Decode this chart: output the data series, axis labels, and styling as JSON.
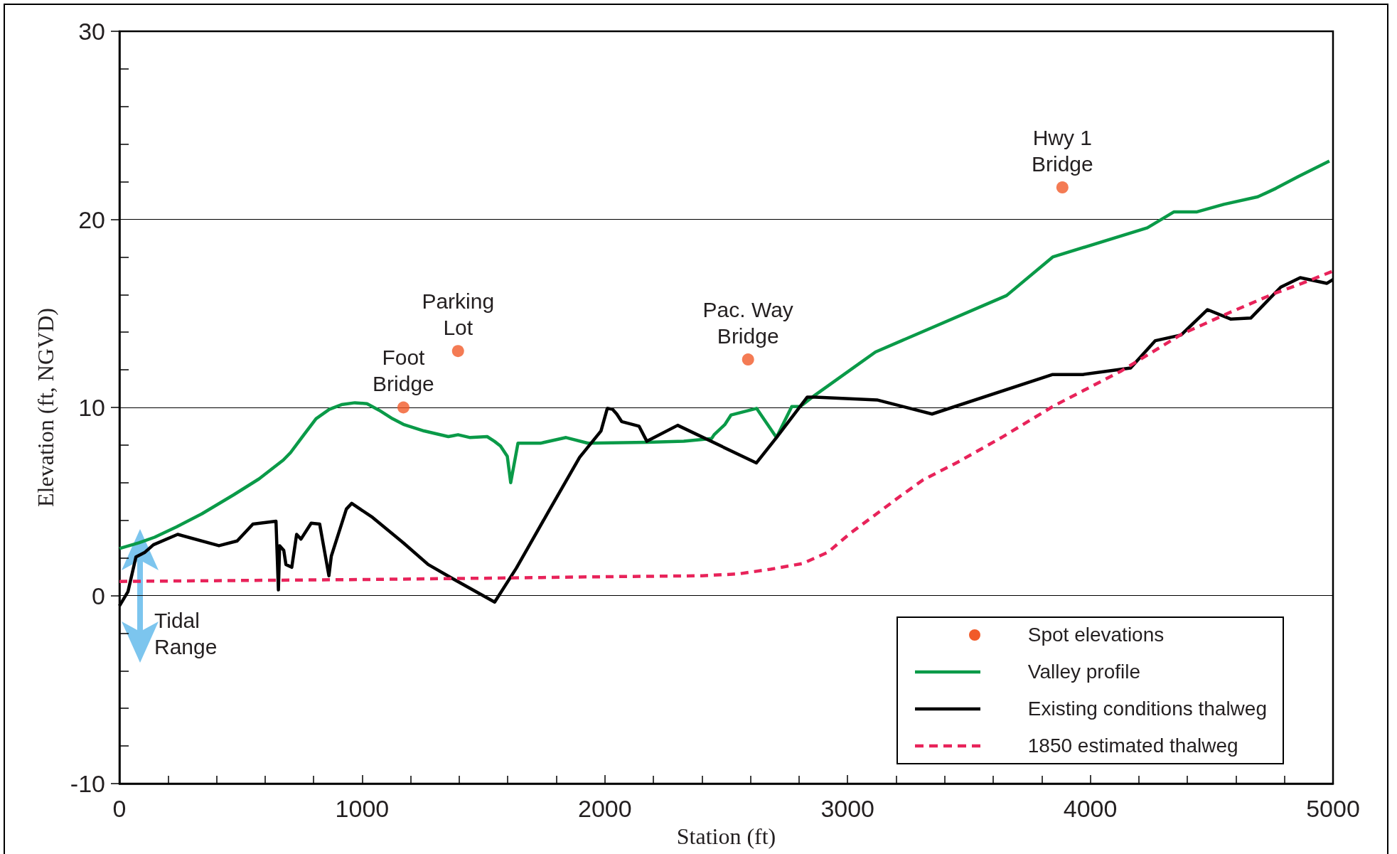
{
  "chart_data": {
    "type": "line",
    "xlabel": "Station (ft)",
    "ylabel": "Elevation (ft, NGVD)",
    "xlim": [
      0,
      5000
    ],
    "xticks": [
      0,
      {
        "value": 200,
        "label": null
      },
      {
        "value": 400,
        "label": null
      },
      {
        "value": 600,
        "label": null
      },
      {
        "value": 800,
        "label": null
      },
      1000,
      {
        "value": 1200,
        "label": null
      },
      {
        "value": 1400,
        "label": null
      },
      {
        "value": 1600,
        "label": null
      },
      {
        "value": 1800,
        "label": null
      },
      2000,
      {
        "value": 2200,
        "label": null
      },
      {
        "value": 2400,
        "label": null
      },
      {
        "value": 2600,
        "label": null
      },
      {
        "value": 2800,
        "label": null
      },
      3000,
      {
        "value": 3200,
        "label": null
      },
      {
        "value": 3400,
        "label": null
      },
      {
        "value": 3600,
        "label": null
      },
      {
        "value": 3800,
        "label": null
      },
      4000,
      {
        "value": 4200,
        "label": null
      },
      {
        "value": 4400,
        "label": null
      },
      {
        "value": 4600,
        "label": null
      },
      {
        "value": 4800,
        "label": null
      },
      5000
    ],
    "ylim": [
      -10,
      30
    ],
    "yticks": [
      -10,
      {
        "value": -8,
        "label": null
      },
      {
        "value": -6,
        "label": null
      },
      {
        "value": -4,
        "label": null
      },
      {
        "value": -2,
        "label": null
      },
      0,
      {
        "value": 2,
        "label": null
      },
      {
        "value": 4,
        "label": null
      },
      {
        "value": 6,
        "label": null
      },
      {
        "value": 8,
        "label": null
      },
      10,
      {
        "value": 12,
        "label": null
      },
      {
        "value": 14,
        "label": null
      },
      {
        "value": 16,
        "label": null
      },
      {
        "value": 18,
        "label": null
      },
      20,
      {
        "value": 22,
        "label": null
      },
      {
        "value": 24,
        "label": null
      },
      {
        "value": 26,
        "label": null
      },
      {
        "value": 28,
        "label": null
      },
      30
    ],
    "grid": "y",
    "legend": "bottom right",
    "series": [
      {
        "name": "Spot elevations",
        "type": "scatter",
        "marker": "circle",
        "color": "#f15a29",
        "x": [
          1170,
          1395,
          2590,
          3885
        ],
        "values": [
          10.0,
          13.0,
          12.55,
          21.7
        ]
      },
      {
        "name": "Valley profile",
        "marker": "none",
        "line_style": "solid",
        "color": "#0a9a48",
        "x": [
          0,
          80,
          145,
          235,
          340,
          470,
          575,
          675,
          705,
          760,
          810,
          865,
          915,
          970,
          1020,
          1070,
          1125,
          1170,
          1255,
          1355,
          1375,
          1395,
          1445,
          1515,
          1545,
          1570,
          1598,
          1612,
          1642,
          1735,
          1840,
          1930,
          2175,
          2325,
          2440,
          2450,
          2495,
          2520,
          2625,
          2707,
          2770,
          2805,
          2865,
          3115,
          3655,
          3845,
          4235,
          4345,
          4440,
          4550,
          4690,
          4765,
          4860,
          4985
        ],
        "values": [
          2.5,
          2.8,
          3.1,
          3.65,
          4.35,
          5.35,
          6.2,
          7.2,
          7.6,
          8.55,
          9.4,
          9.9,
          10.15,
          10.25,
          10.2,
          9.85,
          9.4,
          9.1,
          8.75,
          8.45,
          8.5,
          8.55,
          8.4,
          8.45,
          8.2,
          7.95,
          7.4,
          6.0,
          8.1,
          8.1,
          8.4,
          8.1,
          8.15,
          8.2,
          8.35,
          8.55,
          9.1,
          9.6,
          9.95,
          8.4,
          10.05,
          10.05,
          10.65,
          12.95,
          15.95,
          18.0,
          19.55,
          20.4,
          20.4,
          20.8,
          21.2,
          21.65,
          22.3,
          23.1
        ]
      },
      {
        "name": "Existing conditions thalweg",
        "marker": "none",
        "line_style": "solid",
        "color": "#000000",
        "x": [
          0,
          35,
          68,
          105,
          140,
          240,
          410,
          485,
          550,
          645,
          655,
          660,
          677,
          686,
          710,
          730,
          748,
          790,
          825,
          863,
          873,
          935,
          957,
          1043,
          1170,
          1272,
          1373,
          1546,
          1635,
          1765,
          1896,
          1984,
          2010,
          2032,
          2049,
          2069,
          2141,
          2173,
          2300,
          2624,
          2707,
          2834,
          2866,
          3121,
          3348,
          3845,
          3969,
          4166,
          4268,
          4374,
          4483,
          4578,
          4661,
          4785,
          4865,
          4975,
          5000
        ],
        "values": [
          -0.55,
          0.2,
          2.05,
          2.3,
          2.7,
          3.25,
          2.65,
          2.9,
          3.8,
          3.95,
          0.3,
          2.65,
          2.4,
          1.65,
          1.5,
          3.25,
          3.0,
          3.85,
          3.8,
          1.05,
          2.1,
          4.6,
          4.9,
          4.15,
          2.8,
          1.65,
          0.9,
          -0.35,
          1.45,
          4.4,
          7.35,
          8.75,
          9.95,
          9.9,
          9.65,
          9.25,
          9.0,
          8.2,
          9.05,
          7.05,
          8.4,
          10.55,
          10.55,
          10.4,
          9.65,
          11.75,
          11.75,
          12.1,
          13.55,
          13.85,
          15.2,
          14.7,
          14.75,
          16.4,
          16.9,
          16.6,
          16.8
        ]
      },
      {
        "name": "1850 estimated thalweg",
        "marker": "none",
        "line_style": "dashed",
        "color": "#e8235a",
        "x": [
          0,
          500,
          1000,
          1500,
          2000,
          2400,
          2550,
          2683,
          2814,
          2919,
          3010,
          3115,
          3219,
          3311,
          3455,
          3634,
          3852,
          4129,
          4377,
          4566,
          4756,
          4873,
          5000
        ],
        "values": [
          0.75,
          0.8,
          0.85,
          0.92,
          1.0,
          1.05,
          1.15,
          1.4,
          1.7,
          2.3,
          3.3,
          4.3,
          5.3,
          6.15,
          7.1,
          8.4,
          10.1,
          11.95,
          13.9,
          15.0,
          16.05,
          16.6,
          17.25
        ]
      }
    ],
    "annotations": [
      {
        "text": "Foot\nBridge",
        "x": 1170,
        "y": 10.0
      },
      {
        "text": "Parking\nLot",
        "x": 1395,
        "y": 13.0
      },
      {
        "text": "Pac. Way\nBridge",
        "x": 2590,
        "y": 12.55
      },
      {
        "text": "Hwy 1\nBridge",
        "x": 3885,
        "y": 21.7
      },
      "Tidal\nRange"
    ]
  }
}
